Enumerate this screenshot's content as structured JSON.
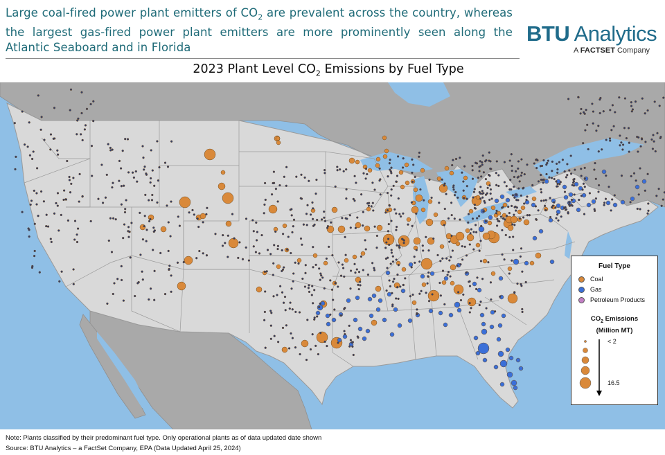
{
  "headline": {
    "line_text": "Large coal-fired power plant emitters of CO",
    "sub": "2",
    "rest": " are prevalent across the country, whereas the largest gas-fired power plant emitters are more prominently seen along the Atlantic Seaboard and in Florida"
  },
  "logo": {
    "main_bold": "BTU",
    "main_rest": " Analytics",
    "sub_prefix": "A ",
    "sub_brand": "FACTSET",
    "sub_rest": " Company"
  },
  "map_title": {
    "before": "2023 Plant Level CO",
    "sub": "2",
    "after": " Emissions by Fuel Type"
  },
  "legend": {
    "fuel_title": "Fuel Type",
    "fuel_types": [
      {
        "label": "Coal",
        "color": "#d9893a"
      },
      {
        "label": "Gas",
        "color": "#3a6fd8"
      },
      {
        "label": "Petroleum Products",
        "color": "#c27fc4"
      }
    ],
    "emissions_title_a": "CO",
    "emissions_title_sub": "2",
    "emissions_title_b": " Emissions",
    "emissions_units": "(Million MT)",
    "min_label": "< 2",
    "max_label": "16.5"
  },
  "notes": {
    "line1": "Note: Plants classified by their predominant fuel type. Only operational plants as of data updated date shown",
    "line2": "Source: BTU Analytics – a FactSet Company, EPA (Data Updated April 25, 2024)"
  },
  "colors": {
    "land": "#d9d9d9",
    "water": "#8fbfe6",
    "coal": "#d9893a",
    "gas": "#3a6fd8",
    "small_dot": "#2f3d6b",
    "outside_land": "#aaaaaa"
  }
}
